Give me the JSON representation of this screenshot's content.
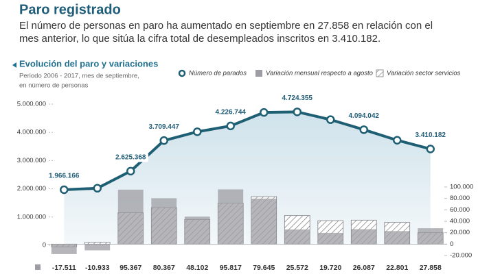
{
  "header": {
    "title": "Paro registrado",
    "text": [
      "El número de personas en paro ha aumentado en septiembre en 27.858 en relación con el",
      "mes anterior, lo que sitúa la cifra total de desempleados inscritos en 3.410.182."
    ]
  },
  "chart_data": {
    "type": "combo",
    "title": "Evolución del paro y variaciones",
    "subtitle": [
      "Periodo 2006 - 2017, mes de septiembre,",
      "en número de personas"
    ],
    "categories": [
      null,
      null,
      null,
      null,
      null,
      null,
      null,
      null,
      null,
      null,
      null,
      null
    ],
    "series": [
      {
        "name": "Número de parados",
        "type": "line",
        "color": "#1e5f74",
        "values": [
          1966166,
          2020000,
          2625368,
          3709447,
          4020000,
          4226744,
          4705000,
          4724355,
          4450000,
          4094042,
          3720000,
          3410182
        ],
        "value_labels": [
          "1.966.166",
          null,
          "2.625.368",
          "3.709.447",
          null,
          "4.226.744",
          null,
          "4.724.355",
          null,
          "4.094.042",
          null,
          "3.410.182"
        ]
      },
      {
        "name": "Variación mensual respecto a agosto",
        "type": "bar",
        "axis": "y2",
        "color": "#9d9da3",
        "values": [
          -17511,
          -10933,
          95367,
          80367,
          48102,
          95817,
          79645,
          25572,
          19720,
          26087,
          22801,
          27858
        ],
        "value_labels": [
          "-17.511",
          "-10.933",
          "95.367",
          "80.367",
          "48.102",
          "95.817",
          "79.645",
          "25.572",
          "19.720",
          "26.087",
          "22.801",
          "27.858"
        ]
      },
      {
        "name": "Variación sector servicios",
        "type": "bar",
        "axis": "y2",
        "color": "#7a7a80",
        "pattern": "hatch",
        "values": [
          -5000,
          3000,
          55000,
          64000,
          43000,
          72000,
          83000,
          50000,
          41000,
          42000,
          38000,
          20000
        ]
      }
    ],
    "ylim": [
      0,
      5000000
    ],
    "yticks": [
      0,
      {
        "value": 1000000,
        "label": "1.000.000"
      },
      {
        "value": 2000000,
        "label": "2.000.000"
      },
      {
        "value": 3000000,
        "label": "3.000.000"
      },
      {
        "value": 4000000,
        "label": "4.000.000"
      },
      {
        "value": 5000000,
        "label": "5.000.000"
      }
    ],
    "y2lim": [
      -20000,
      100000
    ],
    "y2ticks": [
      {
        "value": -20000,
        "label": "-20.000"
      },
      0,
      {
        "value": 20000,
        "label": "20.000"
      },
      {
        "value": 40000,
        "label": "40.000"
      },
      {
        "value": 60000,
        "label": "60.000"
      },
      {
        "value": 80000,
        "label": "80.000"
      },
      {
        "value": 100000,
        "label": "100.000"
      }
    ],
    "grid": false,
    "legend": "top"
  }
}
